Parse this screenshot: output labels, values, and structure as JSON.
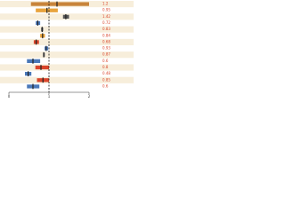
{
  "chart_data": {
    "type": "forest",
    "rows": [
      {
        "low": 0.55,
        "high": 2.0,
        "estimate": 1.2,
        "color": "#c8843a"
      },
      {
        "low": 0.67,
        "high": 1.22,
        "estimate": 0.95,
        "color": "#e8a33c"
      },
      {
        "low": 1.35,
        "high": 1.5,
        "estimate": 1.42,
        "color": "#555555"
      },
      {
        "low": 0.67,
        "high": 0.78,
        "estimate": 0.72,
        "color": "#4a78b8"
      },
      {
        "low": 0.8,
        "high": 0.86,
        "estimate": 0.83,
        "color": "#888888"
      },
      {
        "low": 0.78,
        "high": 0.9,
        "estimate": 0.84,
        "color": "#e8a33c"
      },
      {
        "low": 0.62,
        "high": 0.75,
        "estimate": 0.68,
        "color": "#d9452b"
      },
      {
        "low": 0.89,
        "high": 0.98,
        "estimate": 0.93,
        "color": "#4a78b8"
      },
      {
        "low": 0.85,
        "high": 0.9,
        "estimate": 0.87,
        "color": "#888888"
      },
      {
        "low": 0.45,
        "high": 0.78,
        "estimate": 0.6,
        "color": "#4a78b8"
      },
      {
        "low": 0.66,
        "high": 1.0,
        "estimate": 0.8,
        "color": "#d9452b"
      },
      {
        "low": 0.4,
        "high": 0.56,
        "estimate": 0.48,
        "color": "#4a78b8"
      },
      {
        "low": 0.7,
        "high": 1.0,
        "estimate": 0.85,
        "color": "#d9452b"
      },
      {
        "low": 0.45,
        "high": 0.76,
        "estimate": 0.6,
        "color": "#4a78b8"
      }
    ],
    "xlim": [
      0,
      2
    ],
    "xticks": [
      0,
      1,
      2
    ],
    "reference": 1,
    "stripe": "#f7eedb",
    "label_color": "#d9452b"
  }
}
